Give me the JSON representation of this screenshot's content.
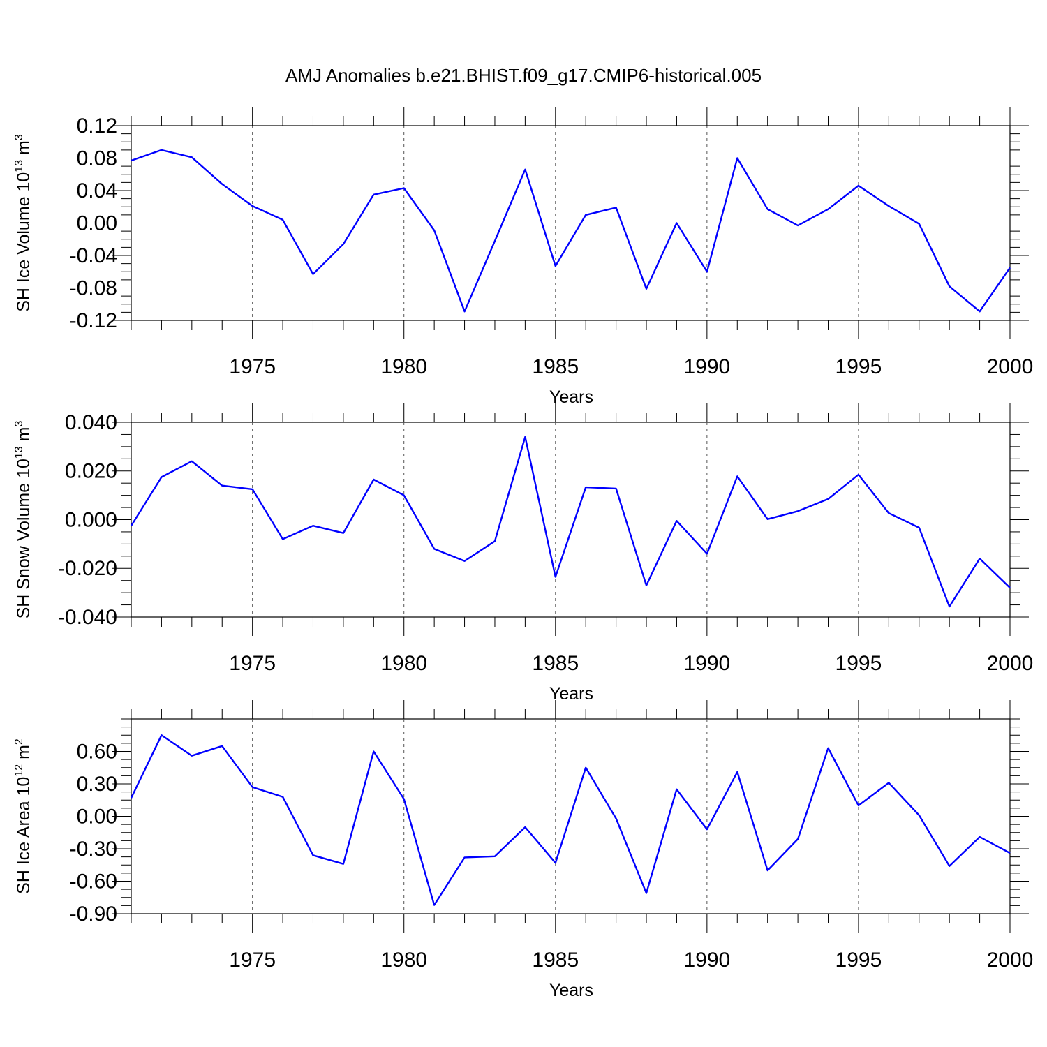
{
  "title": "AMJ Anomalies b.e21.BHIST.f09_g17.CMIP6-historical.005",
  "colors": {
    "series": "#0000ff",
    "axis": "#000000",
    "grid": "#555555"
  },
  "chart_data": [
    {
      "type": "line",
      "ylabel": {
        "text": "SH Ice Volume 10",
        "exp": "13",
        "unit": " m",
        "unit_exp": "3"
      },
      "xlabel": "Years",
      "xlim": [
        1971,
        2000
      ],
      "ylim": [
        -0.12,
        0.12
      ],
      "yticks": [
        -0.12,
        -0.08,
        -0.04,
        0.0,
        0.04,
        0.08,
        0.12
      ],
      "yticklabels": [
        "-0.12",
        "-0.08",
        "-0.04",
        "0.00",
        "0.04",
        "0.08",
        "0.12"
      ],
      "xticks": [
        1975,
        1980,
        1985,
        1990,
        1995,
        2000
      ],
      "xticklabels": [
        "1975",
        "1980",
        "1985",
        "1990",
        "1995",
        "2000"
      ],
      "grid": "dashed vertical at major x ticks",
      "x": [
        1971,
        1972,
        1973,
        1974,
        1975,
        1976,
        1977,
        1978,
        1979,
        1980,
        1981,
        1982,
        1983,
        1984,
        1985,
        1986,
        1987,
        1988,
        1989,
        1990,
        1991,
        1992,
        1993,
        1994,
        1995,
        1996,
        1997,
        1998,
        1999,
        2000
      ],
      "values": [
        0.077,
        0.09,
        0.081,
        0.048,
        0.021,
        0.004,
        -0.063,
        -0.026,
        0.035,
        0.043,
        -0.009,
        -0.109,
        -0.022,
        0.066,
        -0.053,
        0.01,
        0.019,
        -0.081,
        0.0,
        -0.06,
        0.08,
        0.017,
        -0.003,
        0.017,
        0.046,
        0.021,
        -0.001,
        -0.078,
        -0.109,
        -0.055
      ]
    },
    {
      "type": "line",
      "ylabel": {
        "text": "SH Snow Volume 10",
        "exp": "13",
        "unit": " m",
        "unit_exp": "3"
      },
      "xlabel": "Years",
      "xlim": [
        1971,
        2000
      ],
      "ylim": [
        -0.04,
        0.04
      ],
      "yticks": [
        -0.04,
        -0.02,
        0.0,
        0.02,
        0.04
      ],
      "yticklabels": [
        "-0.040",
        "-0.020",
        "0.000",
        "0.020",
        "0.040"
      ],
      "xticks": [
        1975,
        1980,
        1985,
        1990,
        1995,
        2000
      ],
      "xticklabels": [
        "1975",
        "1980",
        "1985",
        "1990",
        "1995",
        "2000"
      ],
      "grid": "dashed vertical at major x ticks",
      "x": [
        1971,
        1972,
        1973,
        1974,
        1975,
        1976,
        1977,
        1978,
        1979,
        1980,
        1981,
        1982,
        1983,
        1984,
        1985,
        1986,
        1987,
        1988,
        1989,
        1990,
        1991,
        1992,
        1993,
        1994,
        1995,
        1996,
        1997,
        1998,
        1999,
        2000
      ],
      "values": [
        -0.0025,
        0.0175,
        0.024,
        0.014,
        0.0125,
        -0.008,
        -0.0025,
        -0.0055,
        0.0165,
        0.01,
        -0.012,
        -0.017,
        -0.0088,
        0.034,
        -0.0235,
        0.0133,
        0.0128,
        -0.027,
        -0.0005,
        -0.014,
        0.0178,
        0.0002,
        0.0035,
        0.0085,
        0.0185,
        0.0027,
        -0.0033,
        -0.0357,
        -0.016,
        -0.028
      ]
    },
    {
      "type": "line",
      "ylabel": {
        "text": "SH Ice Area 10",
        "exp": "12",
        "unit": " m",
        "unit_exp": "2"
      },
      "xlabel": "Years",
      "xlim": [
        1971,
        2000
      ],
      "ylim": [
        -0.9,
        0.9
      ],
      "yticks": [
        -0.9,
        -0.6,
        -0.3,
        0.0,
        0.3,
        0.6
      ],
      "yticklabels": [
        "-0.90",
        "-0.60",
        "-0.30",
        "0.00",
        "0.30",
        "0.60"
      ],
      "xticks": [
        1975,
        1980,
        1985,
        1990,
        1995,
        2000
      ],
      "xticklabels": [
        "1975",
        "1980",
        "1985",
        "1990",
        "1995",
        "2000"
      ],
      "grid": "dashed vertical at major x ticks",
      "x": [
        1971,
        1972,
        1973,
        1974,
        1975,
        1976,
        1977,
        1978,
        1979,
        1980,
        1981,
        1982,
        1983,
        1984,
        1985,
        1986,
        1987,
        1988,
        1989,
        1990,
        1991,
        1992,
        1993,
        1994,
        1995,
        1996,
        1997,
        1998,
        1999,
        2000
      ],
      "values": [
        0.17,
        0.75,
        0.56,
        0.65,
        0.27,
        0.18,
        -0.36,
        -0.44,
        0.6,
        0.16,
        -0.82,
        -0.38,
        -0.37,
        -0.1,
        -0.43,
        0.45,
        -0.02,
        -0.71,
        0.25,
        -0.12,
        0.41,
        -0.5,
        -0.21,
        0.63,
        0.1,
        0.31,
        0.01,
        -0.46,
        -0.19,
        -0.34
      ]
    }
  ]
}
